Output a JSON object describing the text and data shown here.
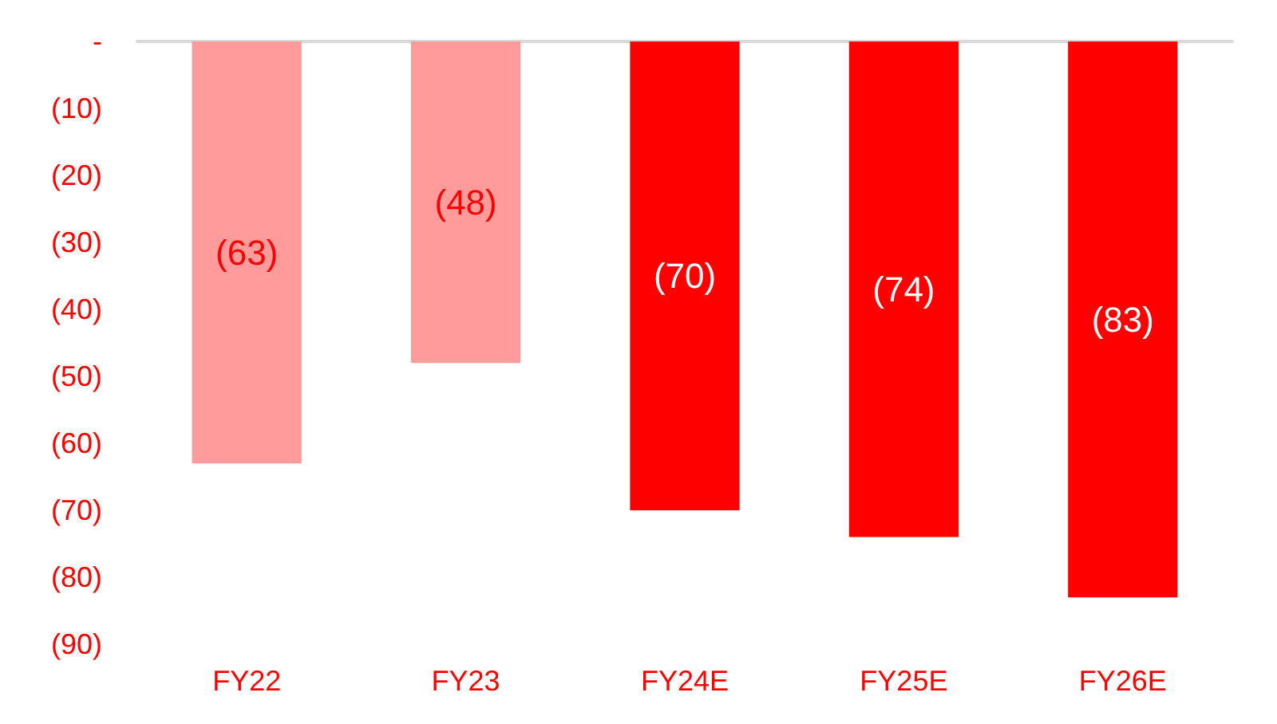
{
  "chart_data": {
    "type": "bar",
    "categories": [
      "FY22",
      "FY23",
      "FY24E",
      "FY25E",
      "FY26E"
    ],
    "values": [
      -63,
      -48,
      -70,
      -74,
      -83
    ],
    "colors": [
      "#ff9b9b",
      "#ff9b9b",
      "#ff0000",
      "#ff0000",
      "#ff0000"
    ],
    "value_labels": [
      "(63)",
      "(48)",
      "(70)",
      "(74)",
      "(83)"
    ],
    "ylim": [
      -90,
      0
    ],
    "yticks": [
      {
        "value": 0,
        "label": "-"
      },
      {
        "value": -10,
        "label": "(10)"
      },
      {
        "value": -20,
        "label": "(20)"
      },
      {
        "value": -30,
        "label": "(30)"
      },
      {
        "value": -40,
        "label": "(40)"
      },
      {
        "value": -50,
        "label": "(50)"
      },
      {
        "value": -60,
        "label": "(60)"
      },
      {
        "value": -70,
        "label": "(70)"
      },
      {
        "value": -80,
        "label": "(80)"
      },
      {
        "value": -90,
        "label": "(90)"
      }
    ],
    "grid": false
  }
}
